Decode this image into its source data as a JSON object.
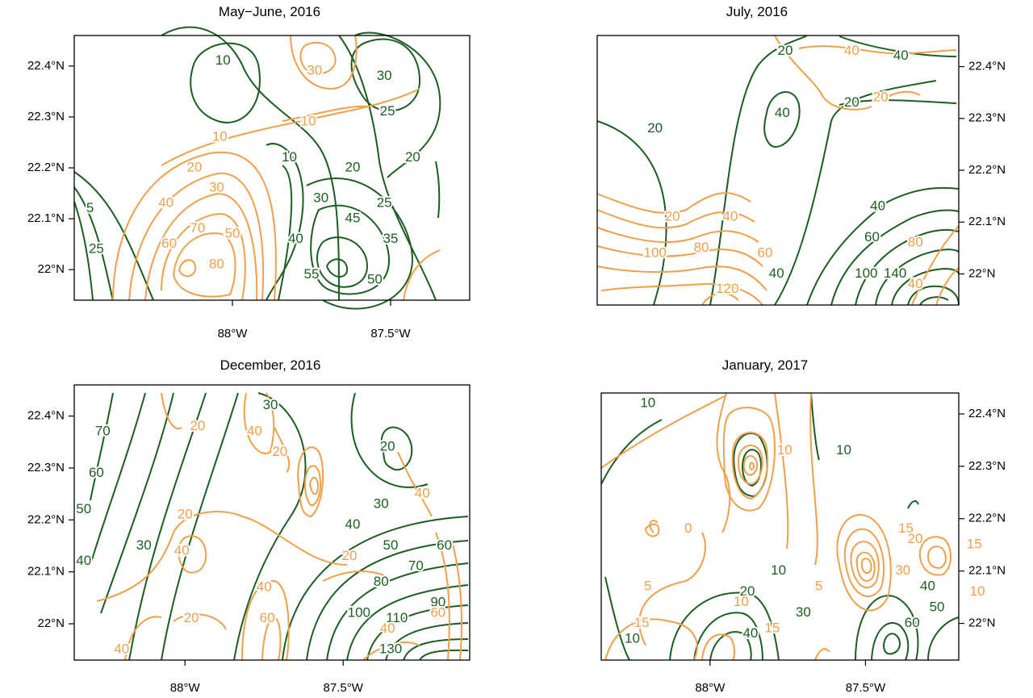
{
  "colors": {
    "green": "#1b5e20",
    "orange": "#f0a04b",
    "axis": "#000000"
  },
  "chart_data": [
    {
      "type": "contour",
      "title": "May−June, 2016",
      "y_axis_side": "left",
      "y_ticks": [
        "22.4°N",
        "22.3°N",
        "22.2°N",
        "22.1°N",
        "22°N"
      ],
      "x_ticks": [
        "88°W",
        "87.5°W"
      ],
      "series": [
        {
          "color": "green",
          "levels": [
            5,
            10,
            20,
            25,
            30,
            35,
            40,
            45,
            50,
            55
          ]
        },
        {
          "color": "orange",
          "levels": [
            10,
            20,
            30,
            40,
            50,
            60,
            70,
            80
          ]
        }
      ],
      "labels": [
        {
          "text": "10",
          "color": "green",
          "lon": -88.03,
          "lat": 22.41
        },
        {
          "text": "30",
          "color": "orange",
          "lon": -87.74,
          "lat": 22.39
        },
        {
          "text": "30",
          "color": "green",
          "lon": -87.52,
          "lat": 22.38
        },
        {
          "text": "25",
          "color": "green",
          "lon": -87.51,
          "lat": 22.31
        },
        {
          "text": "10",
          "color": "orange",
          "lon": -87.76,
          "lat": 22.29
        },
        {
          "text": "10",
          "color": "orange",
          "lon": -88.04,
          "lat": 22.26
        },
        {
          "text": "10",
          "color": "green",
          "lon": -87.82,
          "lat": 22.22
        },
        {
          "text": "20",
          "color": "green",
          "lon": -87.62,
          "lat": 22.2
        },
        {
          "text": "20",
          "color": "green",
          "lon": -87.43,
          "lat": 22.22
        },
        {
          "text": "20",
          "color": "orange",
          "lon": -88.12,
          "lat": 22.2
        },
        {
          "text": "30",
          "color": "orange",
          "lon": -88.05,
          "lat": 22.16
        },
        {
          "text": "30",
          "color": "green",
          "lon": -87.72,
          "lat": 22.14
        },
        {
          "text": "25",
          "color": "green",
          "lon": -87.52,
          "lat": 22.13
        },
        {
          "text": "40",
          "color": "orange",
          "lon": -88.21,
          "lat": 22.13
        },
        {
          "text": "45",
          "color": "green",
          "lon": -87.62,
          "lat": 22.1
        },
        {
          "text": "70",
          "color": "orange",
          "lon": -88.11,
          "lat": 22.08
        },
        {
          "text": "40",
          "color": "green",
          "lon": -87.8,
          "lat": 22.06
        },
        {
          "text": "35",
          "color": "green",
          "lon": -87.5,
          "lat": 22.06
        },
        {
          "text": "60",
          "color": "orange",
          "lon": -88.2,
          "lat": 22.05
        },
        {
          "text": "50",
          "color": "orange",
          "lon": -88.0,
          "lat": 22.07
        },
        {
          "text": "80",
          "color": "orange",
          "lon": -88.05,
          "lat": 22.01
        },
        {
          "text": "5",
          "color": "green",
          "lon": -88.45,
          "lat": 22.12
        },
        {
          "text": "25",
          "color": "green",
          "lon": -88.43,
          "lat": 22.04
        },
        {
          "text": "55",
          "color": "green",
          "lon": -87.75,
          "lat": 21.99
        },
        {
          "text": "50",
          "color": "green",
          "lon": -87.55,
          "lat": 21.98
        }
      ]
    },
    {
      "type": "contour",
      "title": "July, 2016",
      "y_axis_side": "right",
      "y_ticks": [
        "22.4°N",
        "22.3°N",
        "22.2°N",
        "22.1°N",
        "22°N"
      ],
      "x_ticks": [],
      "series": [
        {
          "color": "green",
          "levels": [
            20,
            40,
            60,
            80,
            100,
            120,
            140
          ]
        },
        {
          "color": "orange",
          "levels": [
            20,
            40,
            60,
            80,
            100,
            120
          ]
        }
      ],
      "labels": [
        {
          "text": "20",
          "color": "green",
          "lon": -87.85,
          "lat": 22.43
        },
        {
          "text": "40",
          "color": "orange",
          "lon": -87.62,
          "lat": 22.43
        },
        {
          "text": "40",
          "color": "green",
          "lon": -87.45,
          "lat": 22.42
        },
        {
          "text": "20",
          "color": "green",
          "lon": -87.62,
          "lat": 22.33
        },
        {
          "text": "20",
          "color": "orange",
          "lon": -87.52,
          "lat": 22.34
        },
        {
          "text": "40",
          "color": "green",
          "lon": -87.86,
          "lat": 22.31
        },
        {
          "text": "20",
          "color": "green",
          "lon": -88.3,
          "lat": 22.28
        },
        {
          "text": "40",
          "color": "green",
          "lon": -87.53,
          "lat": 22.13
        },
        {
          "text": "20",
          "color": "orange",
          "lon": -88.24,
          "lat": 22.11
        },
        {
          "text": "40",
          "color": "orange",
          "lon": -88.04,
          "lat": 22.11
        },
        {
          "text": "60",
          "color": "green",
          "lon": -87.55,
          "lat": 22.07
        },
        {
          "text": "80",
          "color": "orange",
          "lon": -88.14,
          "lat": 22.05
        },
        {
          "text": "60",
          "color": "orange",
          "lon": -87.92,
          "lat": 22.04
        },
        {
          "text": "80",
          "color": "orange",
          "lon": -87.4,
          "lat": 22.06
        },
        {
          "text": "100",
          "color": "orange",
          "lon": -88.3,
          "lat": 22.04
        },
        {
          "text": "40",
          "color": "green",
          "lon": -87.88,
          "lat": 22.0
        },
        {
          "text": "100",
          "color": "green",
          "lon": -87.57,
          "lat": 22.0
        },
        {
          "text": "140",
          "color": "green",
          "lon": -87.47,
          "lat": 22.0
        },
        {
          "text": "120",
          "color": "orange",
          "lon": -88.05,
          "lat": 21.97
        },
        {
          "text": "40",
          "color": "orange",
          "lon": -87.4,
          "lat": 21.98
        }
      ]
    },
    {
      "type": "contour",
      "title": "December, 2016",
      "y_axis_side": "left",
      "y_ticks": [
        "22.4°N",
        "22.3°N",
        "22.2°N",
        "22.1°N",
        "22°N"
      ],
      "x_ticks": [
        "88°W",
        "87.5°W"
      ],
      "series": [
        {
          "color": "green",
          "levels": [
            20,
            30,
            40,
            50,
            60,
            70,
            80,
            90,
            100,
            110,
            130
          ]
        },
        {
          "color": "orange",
          "levels": [
            20,
            30,
            40,
            50,
            60
          ]
        }
      ],
      "labels": [
        {
          "text": "30",
          "color": "green",
          "lon": -87.73,
          "lat": 22.42
        },
        {
          "text": "20",
          "color": "orange",
          "lon": -87.96,
          "lat": 22.38
        },
        {
          "text": "40",
          "color": "orange",
          "lon": -87.78,
          "lat": 22.37
        },
        {
          "text": "70",
          "color": "green",
          "lon": -88.26,
          "lat": 22.37
        },
        {
          "text": "20",
          "color": "orange",
          "lon": -87.7,
          "lat": 22.33
        },
        {
          "text": "20",
          "color": "green",
          "lon": -87.36,
          "lat": 22.34
        },
        {
          "text": "60",
          "color": "green",
          "lon": -88.28,
          "lat": 22.29
        },
        {
          "text": "30",
          "color": "green",
          "lon": -87.38,
          "lat": 22.23
        },
        {
          "text": "40",
          "color": "orange",
          "lon": -87.25,
          "lat": 22.25
        },
        {
          "text": "50",
          "color": "green",
          "lon": -88.32,
          "lat": 22.22
        },
        {
          "text": "20",
          "color": "orange",
          "lon": -88.0,
          "lat": 22.21
        },
        {
          "text": "40",
          "color": "green",
          "lon": -87.47,
          "lat": 22.19
        },
        {
          "text": "40",
          "color": "green",
          "lon": -88.32,
          "lat": 22.12
        },
        {
          "text": "30",
          "color": "green",
          "lon": -88.13,
          "lat": 22.15
        },
        {
          "text": "40",
          "color": "orange",
          "lon": -88.01,
          "lat": 22.14
        },
        {
          "text": "50",
          "color": "green",
          "lon": -87.35,
          "lat": 22.15
        },
        {
          "text": "20",
          "color": "orange",
          "lon": -87.48,
          "lat": 22.13
        },
        {
          "text": "60",
          "color": "green",
          "lon": -87.18,
          "lat": 22.15
        },
        {
          "text": "70",
          "color": "green",
          "lon": -87.27,
          "lat": 22.11
        },
        {
          "text": "80",
          "color": "green",
          "lon": -87.38,
          "lat": 22.08
        },
        {
          "text": "40",
          "color": "orange",
          "lon": -87.75,
          "lat": 22.07
        },
        {
          "text": "90",
          "color": "green",
          "lon": -87.2,
          "lat": 22.04
        },
        {
          "text": "20",
          "color": "orange",
          "lon": -87.98,
          "lat": 22.01
        },
        {
          "text": "60",
          "color": "orange",
          "lon": -87.74,
          "lat": 22.01
        },
        {
          "text": "100",
          "color": "green",
          "lon": -87.45,
          "lat": 22.02
        },
        {
          "text": "110",
          "color": "green",
          "lon": -87.33,
          "lat": 22.01
        },
        {
          "text": "40",
          "color": "orange",
          "lon": -87.36,
          "lat": 21.99
        },
        {
          "text": "60",
          "color": "orange",
          "lon": -87.2,
          "lat": 22.02
        },
        {
          "text": "40",
          "color": "orange",
          "lon": -88.2,
          "lat": 21.95
        },
        {
          "text": "130",
          "color": "green",
          "lon": -87.35,
          "lat": 21.95
        }
      ]
    },
    {
      "type": "contour",
      "title": "January, 2017",
      "y_axis_side": "right",
      "y_ticks": [
        "22.4°N",
        "22.3°N",
        "22.2°N",
        "22.1°N",
        "22°N"
      ],
      "x_ticks": [
        "88°W",
        "87.5°W"
      ],
      "series": [
        {
          "color": "green",
          "levels": [
            10,
            20,
            30,
            40,
            50,
            60
          ]
        },
        {
          "color": "orange",
          "levels": [
            0,
            5,
            10,
            15,
            20,
            30,
            40
          ]
        }
      ],
      "labels": [
        {
          "text": "10",
          "color": "green",
          "lon": -88.2,
          "lat": 22.42
        },
        {
          "text": "10",
          "color": "orange",
          "lon": -87.76,
          "lat": 22.33
        },
        {
          "text": "10",
          "color": "green",
          "lon": -87.57,
          "lat": 22.33
        },
        {
          "text": "0",
          "color": "orange",
          "lon": -88.07,
          "lat": 22.18
        },
        {
          "text": "15",
          "color": "orange",
          "lon": -87.37,
          "lat": 22.18
        },
        {
          "text": "20",
          "color": "orange",
          "lon": -87.34,
          "lat": 22.16
        },
        {
          "text": "15",
          "color": "orange",
          "lon": -87.15,
          "lat": 22.15
        },
        {
          "text": "10",
          "color": "green",
          "lon": -87.78,
          "lat": 22.1
        },
        {
          "text": "5",
          "color": "orange",
          "lon": -87.65,
          "lat": 22.07
        },
        {
          "text": "30",
          "color": "orange",
          "lon": -87.38,
          "lat": 22.1
        },
        {
          "text": "40",
          "color": "green",
          "lon": -87.3,
          "lat": 22.07
        },
        {
          "text": "5",
          "color": "orange",
          "lon": -88.2,
          "lat": 22.07
        },
        {
          "text": "20",
          "color": "green",
          "lon": -87.88,
          "lat": 22.06
        },
        {
          "text": "10",
          "color": "orange",
          "lon": -87.9,
          "lat": 22.04
        },
        {
          "text": "10",
          "color": "orange",
          "lon": -87.14,
          "lat": 22.06
        },
        {
          "text": "15",
          "color": "orange",
          "lon": -88.22,
          "lat": 22.0
        },
        {
          "text": "30",
          "color": "green",
          "lon": -87.7,
          "lat": 22.02
        },
        {
          "text": "50",
          "color": "green",
          "lon": -87.27,
          "lat": 22.03
        },
        {
          "text": "60",
          "color": "green",
          "lon": -87.35,
          "lat": 22.0
        },
        {
          "text": "10",
          "color": "green",
          "lon": -88.25,
          "lat": 21.97
        },
        {
          "text": "40",
          "color": "green",
          "lon": -87.87,
          "lat": 21.98
        },
        {
          "text": "15",
          "color": "orange",
          "lon": -87.8,
          "lat": 21.99
        }
      ]
    }
  ]
}
